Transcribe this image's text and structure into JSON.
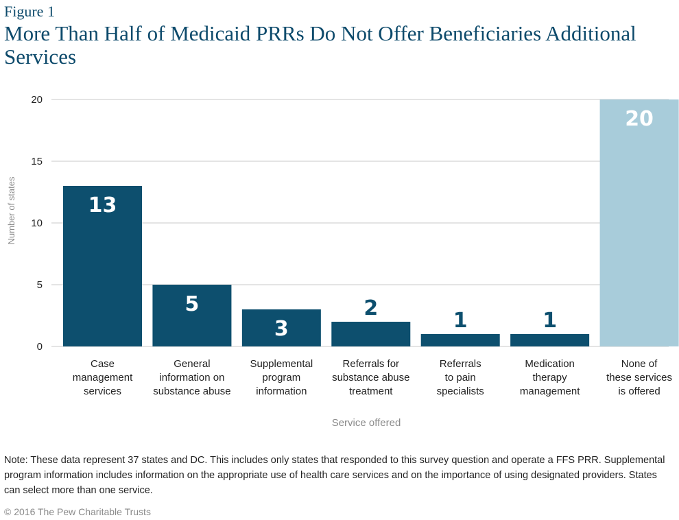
{
  "figure_label": "Figure 1",
  "title": "More Than Half of Medicaid PRRs Do Not Offer Beneficiaries Additional Services",
  "note": "Note: These data represent 37 states and DC. This includes only states that responded to this survey question and operate a FFS PRR. Supplemental program information includes information on the appropriate use of health care services and on the importance of using designated providers. States can select more than one service.",
  "copyright": "© 2016 The Pew Charitable Trusts",
  "colors": {
    "bar": "#0d4f6e",
    "highlight": "#a8ccda",
    "title": "#0d4a6b",
    "grid": "#c8c8c8"
  },
  "chart_data": {
    "type": "bar",
    "categories": [
      "Case management services",
      "General information on substance abuse",
      "Supplemental program information",
      "Referrals for substance abuse treatment",
      "Referrals to pain specialists",
      "Medication therapy management",
      "None of these services is offered"
    ],
    "category_lines": [
      [
        "Case",
        "management",
        "services"
      ],
      [
        "General",
        "information on",
        "substance abuse"
      ],
      [
        "Supplemental",
        "program",
        "information"
      ],
      [
        "Referrals for",
        "substance abuse",
        "treatment"
      ],
      [
        "Referrals",
        "to pain",
        "specialists"
      ],
      [
        "Medication",
        "therapy",
        "management"
      ],
      [
        "None of",
        "these services",
        "is offered"
      ]
    ],
    "values": [
      13,
      5,
      3,
      2,
      1,
      1,
      20
    ],
    "highlight_index": 6,
    "ylim": [
      0,
      20
    ],
    "yticks": [
      0,
      5,
      10,
      15,
      20
    ],
    "xlabel": "Service offered",
    "ylabel": "Number of states",
    "grid": true
  }
}
